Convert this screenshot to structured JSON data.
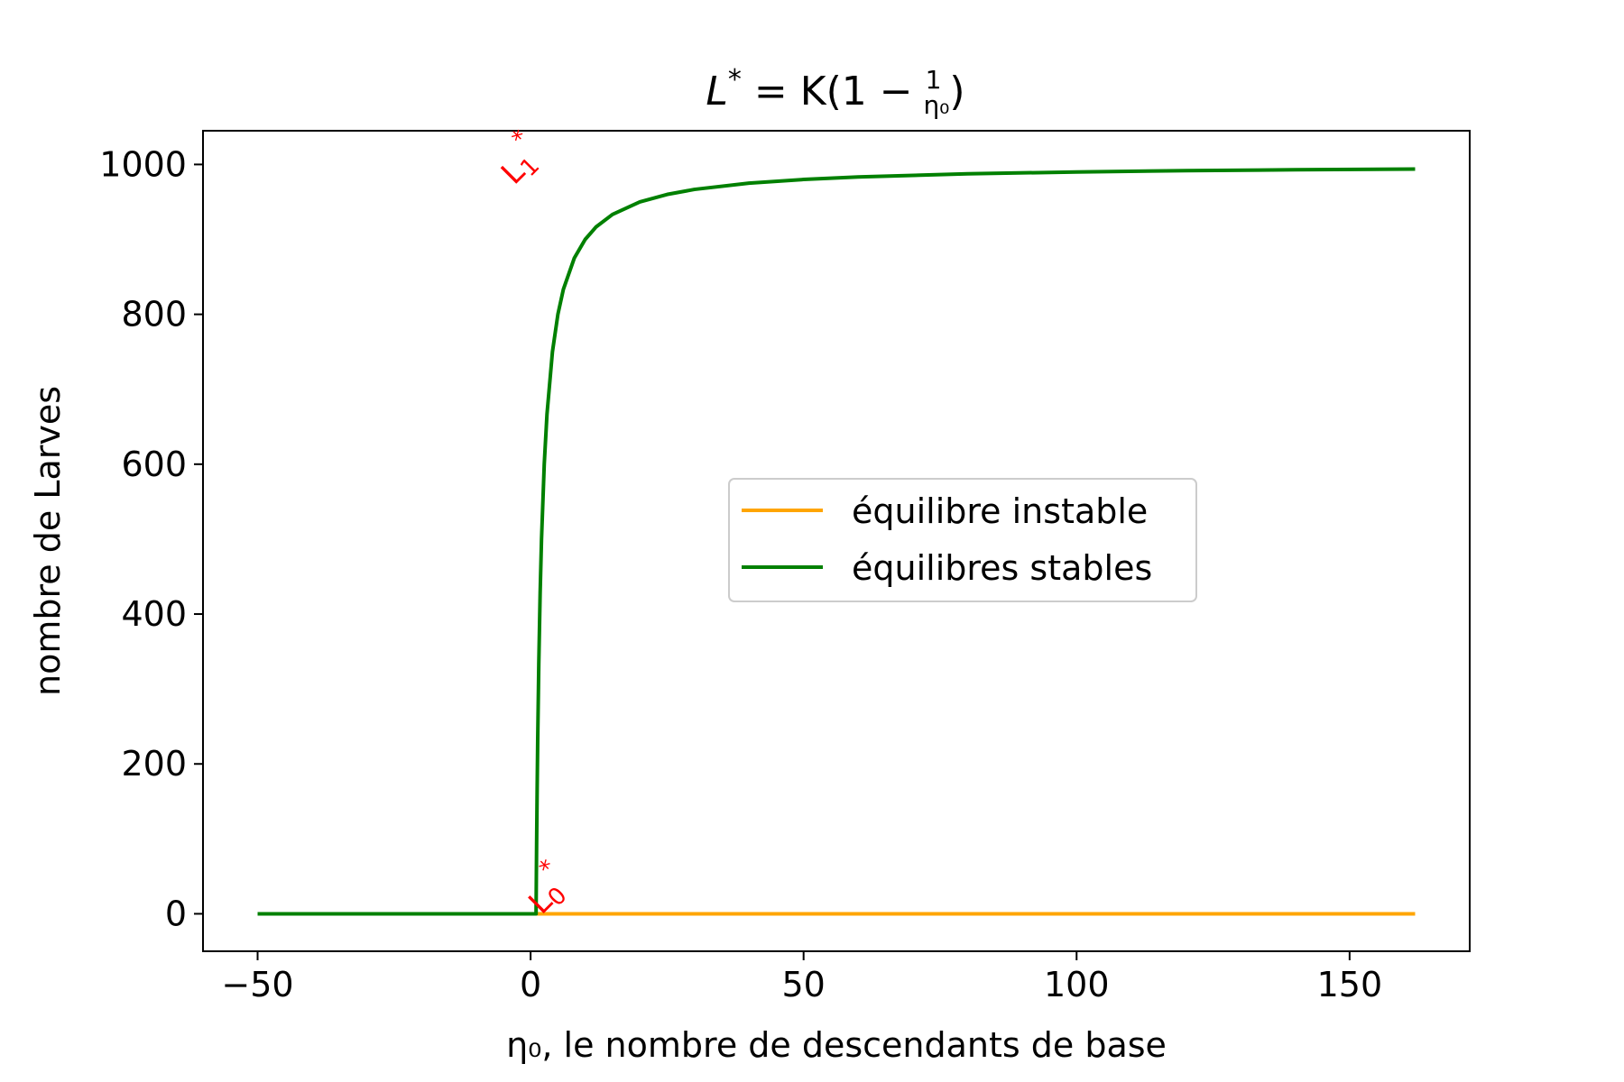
{
  "chart_data": {
    "type": "line",
    "title": "L* = K(1 − 1/η₀)",
    "title_parts": {
      "lhs": "L",
      "star": "*",
      "eq": " = K(1 − ",
      "num": "1",
      "den": "η₀",
      "close": ")"
    },
    "xlabel": "η₀, le nombre de descendants de base",
    "ylabel": "nombre de Larves",
    "xlim": [
      -60,
      172
    ],
    "ylim": [
      -50,
      1045
    ],
    "xticks": [
      -50,
      0,
      50,
      100,
      150
    ],
    "xtick_labels": [
      "−50",
      "0",
      "50",
      "100",
      "150"
    ],
    "yticks": [
      0,
      200,
      400,
      600,
      800,
      1000
    ],
    "ytick_labels": [
      "0",
      "200",
      "400",
      "600",
      "800",
      "1000"
    ],
    "grid": false,
    "legend_position": "center-right",
    "K": 1000,
    "series": [
      {
        "name": "équilibre instable",
        "color": "#ffa500",
        "x": [
          1,
          162
        ],
        "y": [
          0,
          0
        ]
      },
      {
        "name": "équilibres stables",
        "color": "#008000",
        "x": [
          -50,
          1,
          1.05,
          1.1,
          1.2,
          1.3,
          1.5,
          1.75,
          2,
          2.5,
          3,
          4,
          5,
          6,
          8,
          10,
          12,
          15,
          20,
          25,
          30,
          40,
          50,
          60,
          80,
          100,
          120,
          140,
          162
        ],
        "y": [
          0,
          0,
          47.6,
          90.9,
          166.7,
          230.8,
          333.3,
          428.6,
          500,
          600,
          666.7,
          750,
          800,
          833.3,
          875,
          900,
          916.7,
          933.3,
          950,
          960,
          966.7,
          975,
          980,
          983.3,
          987.5,
          990,
          991.7,
          992.9,
          993.8
        ]
      }
    ],
    "annotations": [
      {
        "label": "L",
        "sub": "1",
        "sup": "*",
        "x": -3,
        "y": 1010
      },
      {
        "label": "L",
        "sub": "0",
        "sup": "*",
        "x": 2,
        "y": 0
      }
    ]
  }
}
